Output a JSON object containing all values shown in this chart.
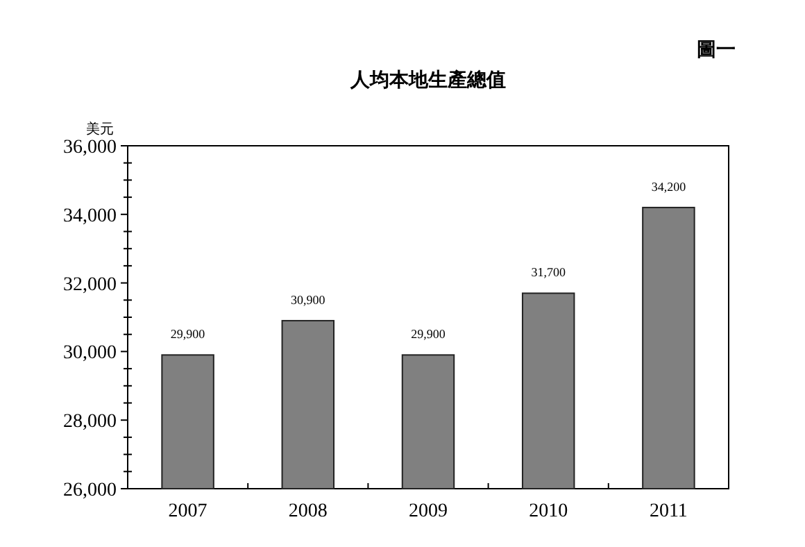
{
  "chart_data": {
    "type": "bar",
    "title": "人均本地生產總值",
    "ylabel": "美元",
    "annotations": [
      "圖一"
    ],
    "categories": [
      "2007",
      "2008",
      "2009",
      "2010",
      "2011"
    ],
    "values": [
      29900,
      30900,
      29900,
      31700,
      34200
    ],
    "value_labels": [
      "29,900",
      "30,900",
      "29,900",
      "31,700",
      "34,200"
    ],
    "color": "#808080",
    "ylim": [
      26000,
      36000
    ],
    "yticks": [
      {
        "value": 26000,
        "label": "26,000"
      },
      {
        "value": 26500,
        "label": null
      },
      {
        "value": 27000,
        "label": null
      },
      {
        "value": 27500,
        "label": null
      },
      {
        "value": 28000,
        "label": "28,000"
      },
      {
        "value": 28500,
        "label": null
      },
      {
        "value": 29000,
        "label": null
      },
      {
        "value": 29500,
        "label": null
      },
      {
        "value": 30000,
        "label": "30,000"
      },
      {
        "value": 30500,
        "label": null
      },
      {
        "value": 31000,
        "label": null
      },
      {
        "value": 31500,
        "label": null
      },
      {
        "value": 32000,
        "label": "32,000"
      },
      {
        "value": 32500,
        "label": null
      },
      {
        "value": 33000,
        "label": null
      },
      {
        "value": 33500,
        "label": null
      },
      {
        "value": 34000,
        "label": "34,000"
      },
      {
        "value": 34500,
        "label": null
      },
      {
        "value": 35000,
        "label": null
      },
      {
        "value": 35500,
        "label": null
      },
      {
        "value": 36000,
        "label": "36,000"
      }
    ],
    "grid": false,
    "legend": false
  }
}
